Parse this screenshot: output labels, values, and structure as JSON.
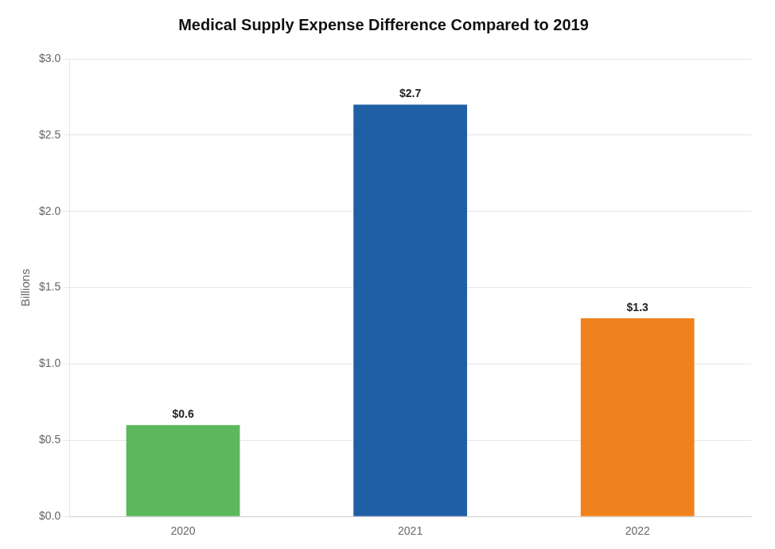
{
  "chart_data": {
    "type": "bar",
    "title": "Medical Supply Expense Difference Compared to 2019",
    "categories": [
      "2020",
      "2021",
      "2022"
    ],
    "values": [
      0.6,
      2.7,
      1.3
    ],
    "value_labels": [
      "$0.6",
      "$2.7",
      "$1.3"
    ],
    "data_labels": true,
    "colors": [
      "#5cb85c",
      "#1f5fa6",
      "#f0821e"
    ],
    "ylabel": "Billions",
    "ylim": [
      0,
      3.0
    ],
    "yticks": [
      {
        "value": 0.0,
        "label": "$0.0"
      },
      {
        "value": 0.5,
        "label": "$0.5"
      },
      {
        "value": 1.0,
        "label": "$1.0"
      },
      {
        "value": 1.5,
        "label": "$1.5"
      },
      {
        "value": 2.0,
        "label": "$2.0"
      },
      {
        "value": 2.5,
        "label": "$2.5"
      },
      {
        "value": 3.0,
        "label": "$3.0"
      }
    ],
    "grid": true
  }
}
